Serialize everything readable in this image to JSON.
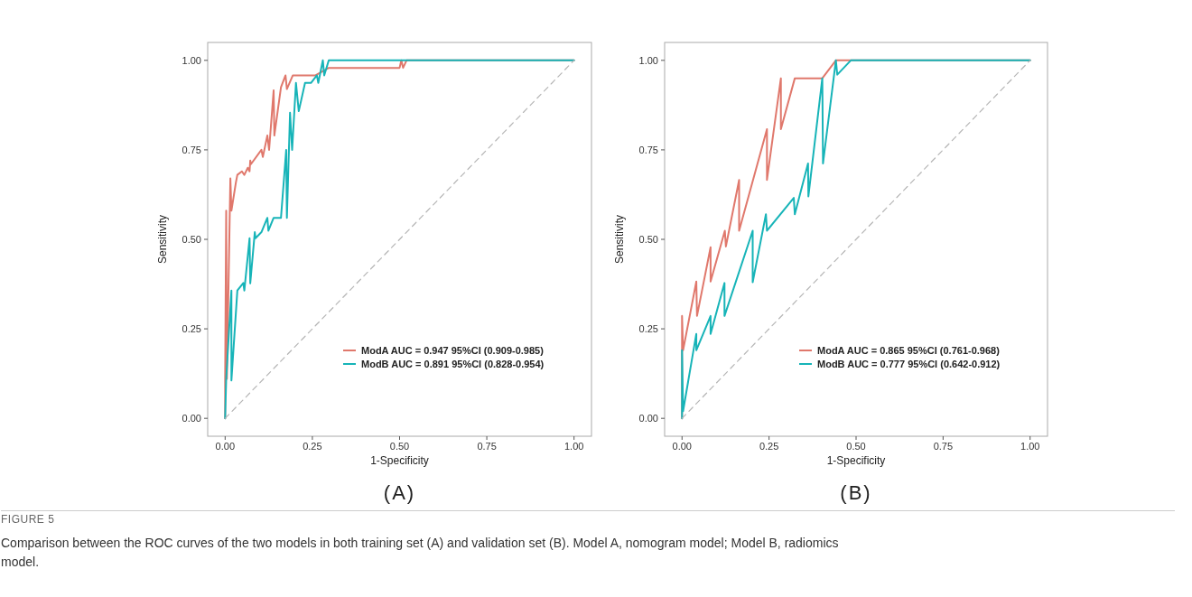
{
  "chart_data": [
    {
      "type": "line",
      "title": "(A)",
      "xlabel": "1-Specificity",
      "ylabel": "Sensitivity",
      "xlim": [
        -0.05,
        1.05
      ],
      "ylim": [
        -0.05,
        1.05
      ],
      "xticks": [
        {
          "value": 0,
          "label": "0.00"
        },
        {
          "value": 0.25,
          "label": "0.25"
        },
        {
          "value": 0.5,
          "label": "0.50"
        },
        {
          "value": 0.75,
          "label": "0.75"
        },
        {
          "value": 1,
          "label": "1.00"
        }
      ],
      "yticks": [
        {
          "value": 0,
          "label": "0.00"
        },
        {
          "value": 0.25,
          "label": "0.25"
        },
        {
          "value": 0.5,
          "label": "0.50"
        },
        {
          "value": 0.75,
          "label": "0.75"
        },
        {
          "value": 1,
          "label": "1.00"
        }
      ],
      "grid": false,
      "legend": "bottom right",
      "series": [
        {
          "name": "ModA AUC = 0.947 95%CI (0.909-0.985)",
          "color": "#e0786c",
          "x": [
            0,
            0,
            0.003,
            0.005,
            0.015,
            0.018,
            0.031,
            0.035,
            0.048,
            0.055,
            0.065,
            0.07,
            0.072,
            0.074,
            0.104,
            0.108,
            0.121,
            0.126,
            0.139,
            0.141,
            0.16,
            0.173,
            0.177,
            0.194,
            0.259,
            0.297,
            0.5,
            0.505,
            0.51,
            0.52,
            1
          ],
          "values": [
            0,
            0.11,
            0.58,
            0.11,
            0.67,
            0.58,
            0.66,
            0.68,
            0.69,
            0.68,
            0.7,
            0.69,
            0.72,
            0.71,
            0.75,
            0.73,
            0.79,
            0.75,
            0.916,
            0.79,
            0.925,
            0.958,
            0.92,
            0.958,
            0.958,
            0.979,
            0.979,
            1,
            0.979,
            1,
            1
          ]
        },
        {
          "name": "ModB AUC = 0.891 95%CI (0.828-0.954)",
          "color": "#17b4b8",
          "x": [
            0,
            0.003,
            0.018,
            0.018,
            0.035,
            0.052,
            0.055,
            0.07,
            0.072,
            0.085,
            0.087,
            0.104,
            0.121,
            0.124,
            0.139,
            0.16,
            0.175,
            0.177,
            0.186,
            0.192,
            0.203,
            0.211,
            0.229,
            0.246,
            0.263,
            0.267,
            0.28,
            0.284,
            0.297,
            1
          ],
          "values": [
            0,
            0.11,
            0.357,
            0.106,
            0.357,
            0.378,
            0.357,
            0.503,
            0.377,
            0.52,
            0.503,
            0.52,
            0.56,
            0.524,
            0.56,
            0.56,
            0.75,
            0.56,
            0.854,
            0.75,
            0.937,
            0.858,
            0.937,
            0.937,
            0.958,
            0.937,
            1,
            0.958,
            1,
            1
          ]
        },
        {
          "type": "line",
          "color": "#b5b5b5",
          "line_style": "dashed",
          "x": [
            0,
            1
          ],
          "values": [
            0,
            1
          ]
        }
      ],
      "annotations": [
        "FIGURE 5",
        "Comparison between the ROC curves of the two models in both training set (A) and validation set (B). Model A, nomogram model; Model B, radiomics model."
      ]
    },
    {
      "type": "line",
      "title": "(B)",
      "xlabel": "1-Specificity",
      "ylabel": "Sensitivity",
      "xlim": [
        -0.05,
        1.05
      ],
      "ylim": [
        -0.05,
        1.05
      ],
      "xticks": [
        {
          "value": 0,
          "label": "0.00"
        },
        {
          "value": 0.25,
          "label": "0.25"
        },
        {
          "value": 0.5,
          "label": "0.50"
        },
        {
          "value": 0.75,
          "label": "0.75"
        },
        {
          "value": 1,
          "label": "1.00"
        }
      ],
      "yticks": [
        {
          "value": 0,
          "label": "0.00"
        },
        {
          "value": 0.25,
          "label": "0.25"
        },
        {
          "value": 0.5,
          "label": "0.50"
        },
        {
          "value": 0.75,
          "label": "0.75"
        },
        {
          "value": 1,
          "label": "1.00"
        }
      ],
      "grid": false,
      "legend": "bottom right",
      "series": [
        {
          "name": "ModA AUC = 0.865 95%CI (0.761-0.968)",
          "color": "#e0786c",
          "x": [
            0,
            0,
            0.003,
            0.041,
            0.043,
            0.082,
            0.082,
            0.123,
            0.126,
            0.164,
            0.164,
            0.244,
            0.244,
            0.284,
            0.284,
            0.324,
            0.403,
            0.442,
            1
          ],
          "values": [
            0,
            0.286,
            0.19,
            0.382,
            0.286,
            0.478,
            0.382,
            0.524,
            0.48,
            0.666,
            0.524,
            0.808,
            0.666,
            0.95,
            0.808,
            0.95,
            0.95,
            1,
            1
          ]
        },
        {
          "name": "ModB AUC = 0.777 95%CI (0.642-0.912)",
          "color": "#17b4b8",
          "x": [
            0,
            0,
            0.003,
            0.041,
            0.041,
            0.082,
            0.082,
            0.122,
            0.122,
            0.203,
            0.203,
            0.241,
            0.244,
            0.321,
            0.324,
            0.362,
            0.363,
            0.403,
            0.405,
            0.442,
            0.446,
            0.485,
            1
          ],
          "values": [
            0,
            0.19,
            0.02,
            0.236,
            0.19,
            0.286,
            0.236,
            0.378,
            0.286,
            0.524,
            0.38,
            0.57,
            0.524,
            0.616,
            0.57,
            0.712,
            0.62,
            0.95,
            0.712,
            1,
            0.96,
            1,
            1
          ]
        },
        {
          "type": "line",
          "color": "#b5b5b5",
          "line_style": "dashed",
          "x": [
            0,
            1
          ],
          "values": [
            0,
            1
          ]
        }
      ]
    }
  ]
}
